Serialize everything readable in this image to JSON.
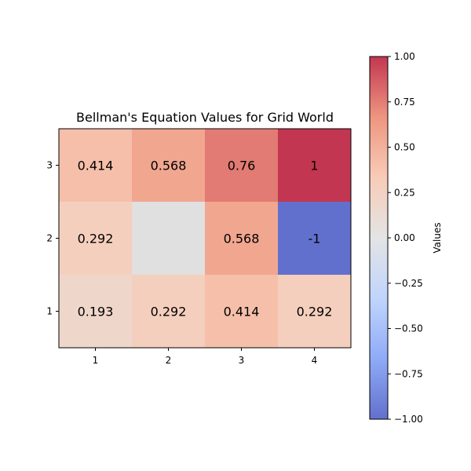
{
  "chart_data": {
    "type": "heatmap",
    "title": "Bellman's Equation Values for Grid World",
    "xlabel": "",
    "ylabel": "",
    "x_ticks": [
      "1",
      "2",
      "3",
      "4"
    ],
    "y_ticks": [
      "1",
      "2",
      "3"
    ],
    "rows": [
      {
        "y": "3",
        "values": [
          0.414,
          0.568,
          0.76,
          1
        ],
        "labels": [
          "0.414",
          "0.568",
          "0.76",
          "1"
        ]
      },
      {
        "y": "2",
        "values": [
          0.292,
          0,
          0.568,
          -1
        ],
        "labels": [
          "0.292",
          "",
          "0.568",
          "-1"
        ]
      },
      {
        "y": "1",
        "values": [
          0.193,
          0.292,
          0.414,
          0.292
        ],
        "labels": [
          "0.193",
          "0.292",
          "0.414",
          "0.292"
        ]
      }
    ],
    "blank_cell": {
      "x": "2",
      "y": "2"
    },
    "colormap": "coolwarm",
    "vmin": -1.0,
    "vmax": 1.0,
    "colorbar": {
      "label": "Values",
      "ticks": [
        {
          "value": 1.0,
          "label": "1.00"
        },
        {
          "value": 0.75,
          "label": "0.75"
        },
        {
          "value": 0.5,
          "label": "0.50"
        },
        {
          "value": 0.25,
          "label": "0.25"
        },
        {
          "value": 0.0,
          "label": "0.00"
        },
        {
          "value": -0.25,
          "label": "−0.25"
        },
        {
          "value": -0.5,
          "label": "−0.50"
        },
        {
          "value": -0.75,
          "label": "−0.75"
        },
        {
          "value": -1.0,
          "label": "−1.00"
        }
      ]
    }
  },
  "colors": {
    "coolwarm_stops": [
      "#3b4cc0",
      "#7396f5",
      "#b0cbfc",
      "#dcdddd",
      "#f6bfa6",
      "#ea7b60",
      "#b40426"
    ],
    "blank_cell_fill": "#e0e0e0",
    "text": "#000000"
  }
}
